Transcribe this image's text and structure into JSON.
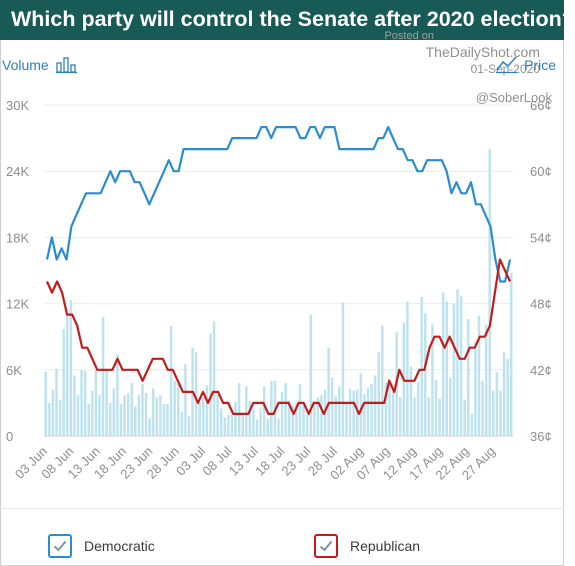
{
  "header": {
    "title": "Which party will control the Senate after 2020 election?",
    "posted_on": "Posted on",
    "site": "TheDailyShot.com",
    "date": "01-Sep-2020",
    "handle": "@SoberLook"
  },
  "controls": {
    "volume_label": "Volume",
    "price_label": "Price",
    "volume_icon": "bar-chart-icon",
    "price_icon": "line-chart-icon"
  },
  "colors": {
    "democratic": "#2b8cd0",
    "republican": "#c41a1a",
    "volume": "#bfe3ee",
    "title_bg": "#175a56"
  },
  "legend": [
    {
      "label": "Democratic",
      "color": "#2b8cd0"
    },
    {
      "label": "Republican",
      "color": "#c41a1a"
    }
  ],
  "chart_data": {
    "type": "line",
    "title": "Which party will control the Senate after 2020 election?",
    "x_ticks": [
      "03 Jun",
      "08 Jun",
      "13 Jun",
      "18 Jun",
      "23 Jun",
      "28 Jun",
      "03 Jul",
      "08 Jul",
      "13 Jul",
      "18 Jul",
      "23 Jul",
      "28 Jul",
      "02 Aug",
      "07 Aug",
      "12 Aug",
      "17 Aug",
      "22 Aug",
      "27 Aug"
    ],
    "x_start": "2020-06-03",
    "y_left": {
      "label": "Volume",
      "ticks": [
        "0",
        "6K",
        "12K",
        "18K",
        "24K",
        "30K"
      ],
      "range": [
        0,
        30000
      ]
    },
    "y_right": {
      "label": "Price",
      "ticks": [
        "36¢",
        "42¢",
        "48¢",
        "54¢",
        "60¢",
        "66¢"
      ],
      "range": [
        36,
        66
      ]
    },
    "grid": "horizontal",
    "legend_position": "bottom",
    "series": [
      {
        "name": "Democratic",
        "axis": "right",
        "values": [
          52,
          54,
          52,
          53,
          52,
          55,
          56,
          57,
          58,
          58,
          58,
          58,
          59,
          60,
          59,
          60,
          60,
          60,
          59,
          59,
          58,
          57,
          58,
          59,
          60,
          61,
          60,
          60,
          62,
          62,
          62,
          62,
          62,
          62,
          62,
          62,
          62,
          62,
          63,
          63,
          63,
          63,
          63,
          63,
          64,
          64,
          63,
          64,
          64,
          64,
          64,
          64,
          63,
          63,
          64,
          64,
          63,
          64,
          64,
          64,
          62,
          62,
          62,
          62,
          62,
          62,
          62,
          62,
          63,
          63,
          64,
          63,
          62,
          62,
          61,
          61,
          60,
          60,
          61,
          61,
          61,
          61,
          60,
          58,
          59,
          58,
          58,
          59,
          57,
          57,
          56,
          55,
          52,
          50,
          50,
          52
        ]
      },
      {
        "name": "Republican",
        "axis": "right",
        "values": [
          50,
          49,
          50,
          49,
          47,
          47,
          46,
          44,
          44,
          43,
          42,
          42,
          42,
          42,
          43,
          42,
          42,
          42,
          42,
          41,
          42,
          43,
          43,
          43,
          42,
          42,
          41,
          40,
          40,
          40,
          39,
          40,
          39,
          40,
          40,
          39,
          39,
          38,
          38,
          38,
          38,
          39,
          39,
          39,
          38,
          38,
          39,
          39,
          39,
          38,
          39,
          39,
          38,
          39,
          39,
          38,
          39,
          39,
          39,
          39,
          39,
          39,
          38,
          39,
          39,
          39,
          39,
          39,
          41,
          40,
          42,
          41,
          41,
          41,
          42,
          42,
          44,
          45,
          45,
          44,
          45,
          44,
          43,
          43,
          44,
          44,
          45,
          45,
          46,
          49,
          52,
          51,
          50
        ]
      },
      {
        "name": "Volume",
        "axis": "left",
        "type": "bar",
        "values": [
          5800,
          3000,
          4200,
          6100,
          3300,
          9700,
          11100,
          12300,
          5500,
          3700,
          6000,
          5900,
          2900,
          4100,
          6000,
          3700,
          10800,
          6000,
          3000,
          4300,
          7400,
          2900,
          3700,
          3900,
          4800,
          2700,
          3700,
          4700,
          3900,
          1600,
          4300,
          3500,
          3700,
          2900,
          2900,
          10000,
          5000,
          4700,
          2200,
          6500,
          1800,
          8000,
          7600,
          3000,
          3500,
          4600,
          9300,
          10400,
          3700,
          2500,
          1700,
          1900,
          2000,
          3100,
          4800,
          2100,
          4500,
          3200,
          2400,
          1500,
          2500,
          4500,
          1600,
          5000,
          5000,
          1600,
          4000,
          4800,
          3200,
          2800,
          3000,
          4700,
          3000,
          1900,
          11000,
          2900,
          3500,
          3700,
          4200,
          8000,
          5300,
          3600,
          4500,
          12100,
          2900,
          4300,
          4100,
          4200,
          5700,
          3800,
          4400,
          4700,
          5500,
          7600,
          10000,
          4900,
          5200,
          4400,
          9400,
          3500,
          10300,
          12200,
          6300,
          3500,
          4900,
          12600,
          11100,
          3500,
          10100,
          5100,
          3400,
          13000,
          12200,
          5300,
          12000,
          13300,
          12700,
          3300,
          10600,
          2000,
          8500,
          10900,
          5000,
          10100,
          26000,
          4100,
          5800,
          4100,
          7600,
          7000,
          14800
        ]
      }
    ]
  }
}
